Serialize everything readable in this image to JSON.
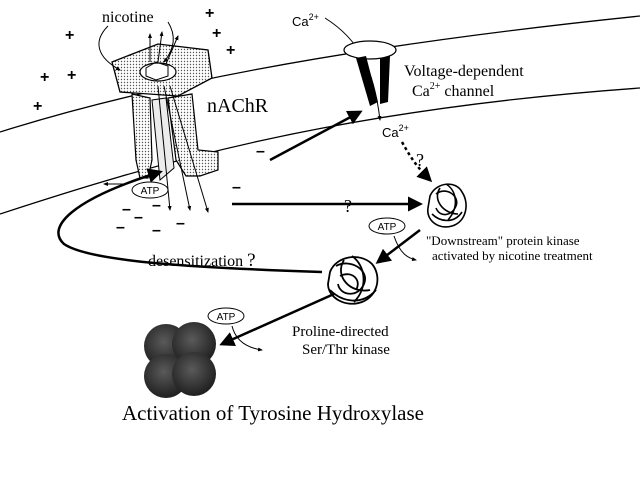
{
  "labels": {
    "nicotine": "nicotine",
    "nachr": "nAChR",
    "ca_ion": "Ca",
    "ca_superscript": "2+",
    "channel_line1": "Voltage-dependent",
    "channel_line2_prefix": "Ca",
    "channel_line2_superscript": "2+",
    "channel_line2_suffix": " channel",
    "atp": "ATP",
    "question": "?",
    "downstream_line1": "\"Downstream\" protein kinase",
    "downstream_line2": "activated by nicotine treatment",
    "desensitization": "desensitization",
    "proline_line1": "Proline-directed",
    "proline_line2": "Ser/Thr kinase",
    "activation": "Activation of Tyrosine Hydroxylase",
    "plus": "+",
    "minus": "–"
  },
  "colors": {
    "ink": "#000000",
    "receptor_fill": "#cfcfcf",
    "kinase_dark": "#3a3a3a",
    "paper": "#ffffff"
  },
  "icons": [
    "nicotine-ring-icon",
    "receptor-icon",
    "calcium-channel-icon",
    "protein-kinase-icon",
    "tyrosine-hydroxylase-icon"
  ]
}
